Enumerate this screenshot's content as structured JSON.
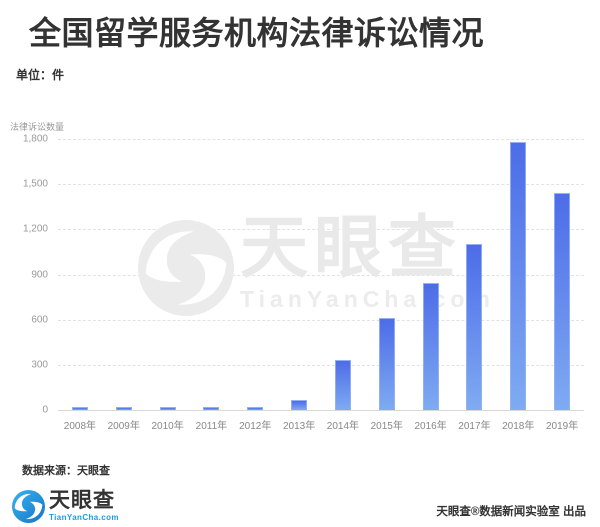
{
  "header": {
    "title": "全国留学服务机构法律诉讼情况",
    "unit": "单位：件"
  },
  "chart_data": {
    "type": "bar",
    "title": "全国留学服务机构法律诉讼情况",
    "unit": "件",
    "ylabel": "法律诉讼数量",
    "categories": [
      "2008年",
      "2009年",
      "2010年",
      "2011年",
      "2012年",
      "2013年",
      "2014年",
      "2015年",
      "2016年",
      "2017年",
      "2018年",
      "2019年"
    ],
    "values": [
      18,
      20,
      20,
      18,
      20,
      65,
      330,
      610,
      845,
      1100,
      1780,
      1440
    ],
    "ylim": [
      0,
      1800
    ],
    "yticks": [
      0,
      300,
      600,
      900,
      1200,
      1500,
      1800
    ],
    "ytick_labels": [
      "0",
      "300",
      "600",
      "900",
      "1,200",
      "1,500",
      "1,800"
    ],
    "grid": "horizontal-dashed",
    "legend": "none",
    "bar_gradient_top": "#4d6ce8",
    "bar_gradient_bottom": "#7fabf2"
  },
  "watermark": {
    "icon": "tianyancha-swirl-icon",
    "cn": "天眼查",
    "en": "TianYanCha.com"
  },
  "footer": {
    "source": "数据来源：天眼查",
    "logo_cn": "天眼查",
    "logo_domain": "TianYanCha.com",
    "credit": "天眼查®数据新闻实验室 出品"
  },
  "colors": {
    "title_text": "#333333",
    "axis_text": "#999999",
    "gridline": "#e2e2e2",
    "logo_blue": "#1b9ae8",
    "watermark_gray": "#e9e9e9"
  }
}
